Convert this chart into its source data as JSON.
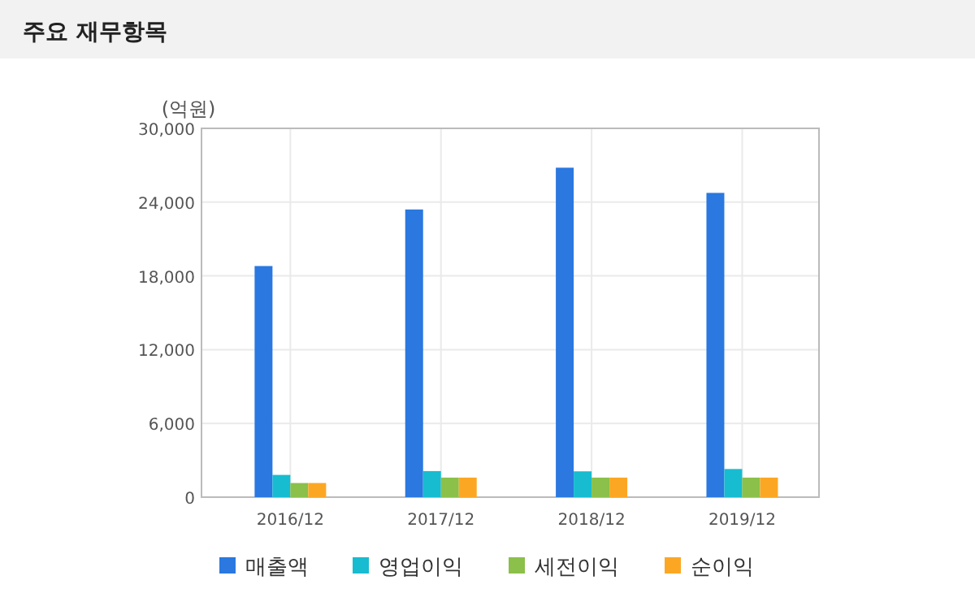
{
  "chart_data": {
    "type": "bar",
    "title": "주요 재무항목",
    "ylabel": "(억원)",
    "categories": [
      "2016/12",
      "2017/12",
      "2018/12",
      "2019/12"
    ],
    "series": [
      {
        "name": "매출액",
        "color": "#2a78e0",
        "values": [
          18800,
          23400,
          26800,
          24750
        ]
      },
      {
        "name": "영업이익",
        "color": "#17bcd0",
        "values": [
          1810,
          2120,
          2100,
          2290
        ]
      },
      {
        "name": "세전이익",
        "color": "#8bc04a",
        "values": [
          1150,
          1590,
          1590,
          1590
        ]
      },
      {
        "name": "순이익",
        "color": "#fca724",
        "values": [
          1150,
          1590,
          1590,
          1590
        ]
      }
    ],
    "ylim": [
      0,
      30000
    ],
    "yticks": [
      {
        "value": 0,
        "label": "0"
      },
      {
        "value": 6000,
        "label": "6,000"
      },
      {
        "value": 12000,
        "label": "12,000"
      },
      {
        "value": 18000,
        "label": "18,000"
      },
      {
        "value": 24000,
        "label": "24,000"
      },
      {
        "value": 30000,
        "label": "30,000"
      }
    ],
    "grid": true,
    "legend": "bottom"
  }
}
